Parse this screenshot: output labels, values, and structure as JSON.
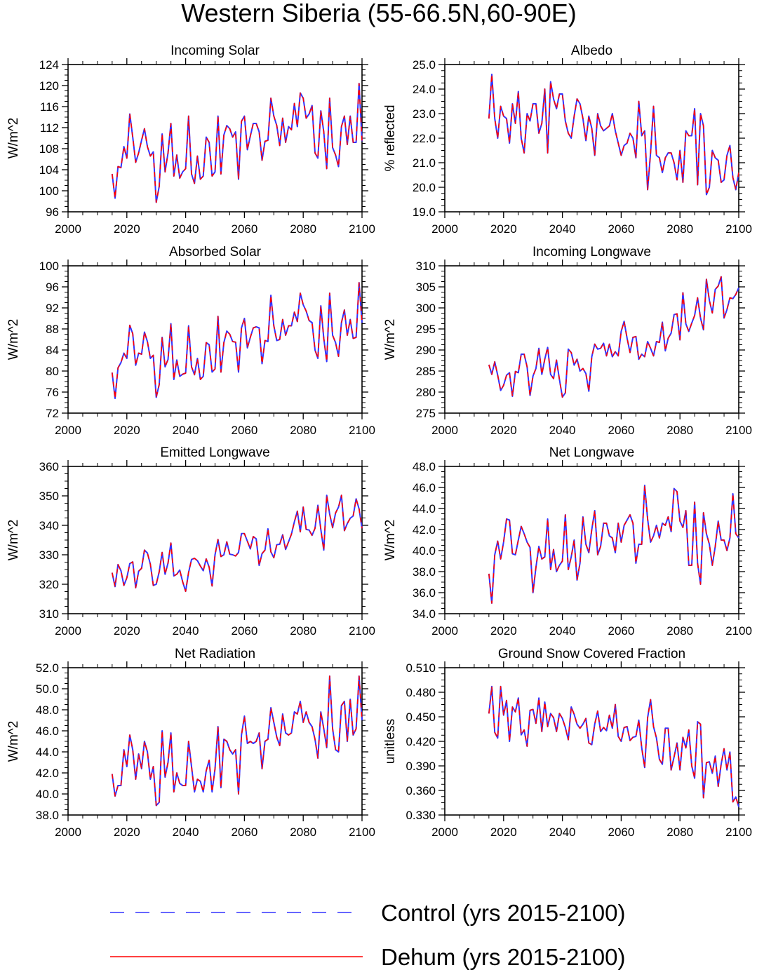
{
  "chart_data": {
    "type": "line",
    "title": "Western Siberia (55-66.5N,60-90E)",
    "x": [
      2015,
      2016,
      2017,
      2018,
      2019,
      2020,
      2021,
      2022,
      2023,
      2024,
      2025,
      2026,
      2027,
      2028,
      2029,
      2030,
      2031,
      2032,
      2033,
      2034,
      2035,
      2036,
      2037,
      2038,
      2039,
      2040,
      2041,
      2042,
      2043,
      2044,
      2045,
      2046,
      2047,
      2048,
      2049,
      2050,
      2051,
      2052,
      2053,
      2054,
      2055,
      2056,
      2057,
      2058,
      2059,
      2060,
      2061,
      2062,
      2063,
      2064,
      2065,
      2066,
      2067,
      2068,
      2069,
      2070,
      2071,
      2072,
      2073,
      2074,
      2075,
      2076,
      2077,
      2078,
      2079,
      2080,
      2081,
      2082,
      2083,
      2084,
      2085,
      2086,
      2087,
      2088,
      2089,
      2090,
      2091,
      2092,
      2093,
      2094,
      2095,
      2096,
      2097,
      2098,
      2099,
      2100
    ],
    "series_names": [
      "Control (yrs 2015-2100)",
      "Dehum (yrs 2015-2100)"
    ],
    "series_colors": [
      "#3333ff",
      "#ff0000"
    ],
    "panels": [
      {
        "title": "Incoming Solar",
        "ylabel": "W/m^2",
        "ylim": [
          96,
          124
        ],
        "yticks": [
          "96",
          "100",
          "104",
          "108",
          "112",
          "116",
          "120",
          "124"
        ],
        "xticks": [
          "2000",
          "2020",
          "2040",
          "2060",
          "2080",
          "2100"
        ],
        "xlim": [
          2000,
          2100
        ],
        "values": [
          103.2,
          98.6,
          104.6,
          104.4,
          108.4,
          106.2,
          114.6,
          110.2,
          105.4,
          107.2,
          109.6,
          111.8,
          108.4,
          106.6,
          107.4,
          97.8,
          100.8,
          110.8,
          103.6,
          107.2,
          112.8,
          102.8,
          106.8,
          102.4,
          103.6,
          104.2,
          114.2,
          103.2,
          101.4,
          106.6,
          102.2,
          102.8,
          110.2,
          109.2,
          102.8,
          103.6,
          114.2,
          103.2,
          110.6,
          112.4,
          111.8,
          110.2,
          111.2,
          102.2,
          113.2,
          114.2,
          107.8,
          110.4,
          112.8,
          112.8,
          111.2,
          105.8,
          109.4,
          109.6,
          117.6,
          114.2,
          112.4,
          108.6,
          113.8,
          109.2,
          112.2,
          111.6,
          116.6,
          112.2,
          118.6,
          117.6,
          113.8,
          114.6,
          116.2,
          107.2,
          106.2,
          115.2,
          111.2,
          104.2,
          117.6,
          108.2,
          106.8,
          104.6,
          112.2,
          114.2,
          108.8,
          114.2,
          109.2,
          109.2,
          120.4,
          109.4
        ]
      },
      {
        "title": "Albedo",
        "ylabel": "% reflected",
        "ylim": [
          19,
          25
        ],
        "yticks": [
          "19.0",
          "20.0",
          "21.0",
          "22.0",
          "23.0",
          "24.0",
          "25.0"
        ],
        "xticks": [
          "2000",
          "2020",
          "2040",
          "2060",
          "2080",
          "2100"
        ],
        "xlim": [
          2000,
          2100
        ],
        "values": [
          22.8,
          24.6,
          22.8,
          22.0,
          23.3,
          22.9,
          22.8,
          21.8,
          23.4,
          22.6,
          23.9,
          22.0,
          21.4,
          23.0,
          22.7,
          23.4,
          23.4,
          22.2,
          22.6,
          24.0,
          21.4,
          24.3,
          23.6,
          23.2,
          23.8,
          23.8,
          22.7,
          22.2,
          22.0,
          22.9,
          23.6,
          23.4,
          22.8,
          21.9,
          22.9,
          22.4,
          21.3,
          23.0,
          22.5,
          22.3,
          22.4,
          22.5,
          23.0,
          22.3,
          21.8,
          21.3,
          21.7,
          21.8,
          22.2,
          22.0,
          21.2,
          23.5,
          22.1,
          22.3,
          19.9,
          21.4,
          23.3,
          21.3,
          21.2,
          20.6,
          21.2,
          21.4,
          21.4,
          21.0,
          20.3,
          21.5,
          20.2,
          22.3,
          22.1,
          22.1,
          23.2,
          20.1,
          23.0,
          22.5,
          19.7,
          20.0,
          21.5,
          21.2,
          21.1,
          20.2,
          20.3,
          21.3,
          21.7,
          20.4,
          19.9,
          20.6
        ]
      },
      {
        "title": "Absorbed Solar",
        "ylabel": "W/m^2",
        "ylim": [
          72,
          100
        ],
        "yticks": [
          "72",
          "76",
          "80",
          "84",
          "88",
          "92",
          "96",
          "100"
        ],
        "xticks": [
          "2000",
          "2020",
          "2040",
          "2060",
          "2080",
          "2100"
        ],
        "xlim": [
          2000,
          2100
        ],
        "values": [
          79.7,
          74.8,
          80.6,
          81.6,
          83.4,
          82.4,
          88.7,
          87.1,
          81.1,
          83.4,
          83.2,
          87.4,
          85.6,
          82.4,
          83.0,
          75.0,
          77.4,
          86.4,
          80.8,
          82.2,
          89.0,
          78.4,
          82.1,
          79.0,
          79.4,
          79.6,
          88.6,
          80.8,
          79.3,
          82.4,
          78.4,
          79.0,
          85.4,
          85.0,
          79.8,
          80.4,
          90.4,
          79.8,
          85.4,
          87.6,
          87.0,
          85.6,
          85.5,
          79.8,
          88.2,
          90.0,
          84.4,
          86.4,
          88.2,
          88.4,
          88.2,
          81.4,
          85.8,
          85.6,
          94.4,
          88.6,
          85.8,
          86.0,
          89.8,
          86.8,
          88.6,
          88.6,
          91.2,
          89.4,
          94.8,
          92.6,
          91.4,
          89.6,
          89.2,
          84.0,
          82.4,
          92.4,
          86.2,
          81.8,
          94.8,
          86.8,
          85.4,
          82.8,
          89.2,
          91.6,
          86.8,
          89.8,
          86.2,
          86.4,
          96.8,
          89.2
        ]
      },
      {
        "title": "Incoming Longwave",
        "ylabel": "W/m^2",
        "ylim": [
          275,
          310
        ],
        "yticks": [
          "275",
          "280",
          "285",
          "290",
          "295",
          "300",
          "305",
          "310"
        ],
        "xticks": [
          "2000",
          "2020",
          "2040",
          "2060",
          "2080",
          "2100"
        ],
        "xlim": [
          2000,
          2100
        ],
        "values": [
          286.5,
          284.2,
          287.2,
          284.0,
          280.4,
          281.6,
          284.0,
          284.6,
          279.0,
          284.9,
          284.6,
          289.0,
          289.0,
          286.0,
          279.2,
          283.8,
          285.6,
          290.4,
          284.2,
          287.8,
          290.6,
          284.2,
          283.2,
          287.6,
          283.0,
          278.8,
          279.8,
          290.2,
          289.4,
          286.4,
          287.8,
          285.0,
          285.6,
          284.4,
          280.2,
          288.4,
          291.4,
          290.2,
          290.4,
          291.6,
          288.6,
          291.4,
          288.4,
          289.6,
          288.6,
          294.4,
          296.8,
          292.8,
          289.4,
          293.0,
          293.2,
          287.8,
          289.0,
          288.4,
          292.0,
          290.4,
          288.6,
          292.0,
          291.8,
          296.6,
          289.8,
          292.8,
          294.0,
          298.4,
          298.6,
          292.4,
          303.6,
          296.2,
          294.4,
          296.4,
          298.2,
          302.4,
          297.6,
          294.8,
          306.8,
          301.8,
          298.8,
          304.4,
          305.2,
          307.4,
          297.6,
          299.6,
          302.4,
          302.2,
          303.2,
          304.8
        ]
      },
      {
        "title": "Emitted Longwave",
        "ylabel": "W/m^2",
        "ylim": [
          310,
          360
        ],
        "yticks": [
          "310",
          "320",
          "330",
          "340",
          "350",
          "360"
        ],
        "xticks": [
          "2000",
          "2020",
          "2040",
          "2060",
          "2080",
          "2100"
        ],
        "xlim": [
          2000,
          2100
        ],
        "values": [
          323.9,
          319.2,
          326.7,
          324.6,
          319.6,
          322.2,
          327.0,
          327.6,
          318.8,
          324.4,
          325.4,
          331.6,
          330.6,
          326.8,
          319.6,
          320.0,
          324.2,
          330.8,
          323.4,
          327.2,
          334.0,
          322.8,
          323.4,
          324.8,
          320.8,
          317.6,
          324.0,
          328.4,
          328.8,
          328.0,
          326.2,
          324.6,
          328.6,
          325.8,
          319.4,
          330.0,
          335.2,
          329.4,
          330.0,
          334.4,
          330.2,
          330.0,
          329.6,
          330.8,
          337.2,
          337.2,
          334.6,
          332.0,
          336.2,
          335.4,
          326.4,
          330.4,
          331.6,
          338.8,
          331.0,
          329.0,
          333.4,
          333.6,
          336.8,
          331.8,
          334.4,
          337.0,
          341.2,
          344.8,
          337.8,
          346.2,
          338.6,
          338.4,
          336.6,
          339.0,
          346.8,
          338.6,
          331.6,
          350.2,
          343.8,
          339.2,
          344.2,
          346.2,
          350.2,
          338.2,
          340.6,
          342.4,
          343.2,
          349.0,
          345.6,
          339.0
        ]
      },
      {
        "title": "Net Longwave",
        "ylabel": "W/m^2",
        "ylim": [
          34,
          48
        ],
        "yticks": [
          "34.0",
          "36.0",
          "38.0",
          "40.0",
          "42.0",
          "44.0",
          "46.0",
          "48.0"
        ],
        "xticks": [
          "2000",
          "2020",
          "2040",
          "2060",
          "2080",
          "2100"
        ],
        "xlim": [
          2000,
          2100
        ],
        "values": [
          37.8,
          35.0,
          39.6,
          40.9,
          39.2,
          40.8,
          43.0,
          42.9,
          39.7,
          39.6,
          41.0,
          42.3,
          41.6,
          40.8,
          40.3,
          36.0,
          38.4,
          40.4,
          39.2,
          39.4,
          43.0,
          38.2,
          40.1,
          38.0,
          38.6,
          39.0,
          43.4,
          38.2,
          39.4,
          41.0,
          37.2,
          38.8,
          43.2,
          40.6,
          39.8,
          42.0,
          43.8,
          39.6,
          40.4,
          42.6,
          42.6,
          41.4,
          41.2,
          39.8,
          42.6,
          40.8,
          42.4,
          42.9,
          43.4,
          42.6,
          38.8,
          40.6,
          40.6,
          46.2,
          43.0,
          40.8,
          41.4,
          42.4,
          41.2,
          42.6,
          42.4,
          43.2,
          41.8,
          45.9,
          45.6,
          42.8,
          42.2,
          43.8,
          38.6,
          38.6,
          44.6,
          38.8,
          36.8,
          43.6,
          41.6,
          40.6,
          38.6,
          40.4,
          42.8,
          41.0,
          41.0,
          40.0,
          41.2,
          45.4,
          41.6,
          41.2
        ]
      },
      {
        "title": "Net Radiation",
        "ylabel": "W/m^2",
        "ylim": [
          38,
          52
        ],
        "yticks": [
          "38.0",
          "40.0",
          "42.0",
          "44.0",
          "46.0",
          "48.0",
          "50.0",
          "52.0"
        ],
        "xticks": [
          "2000",
          "2020",
          "2040",
          "2060",
          "2080",
          "2100"
        ],
        "xlim": [
          2000,
          2100
        ],
        "values": [
          41.9,
          39.8,
          40.8,
          40.8,
          44.2,
          42.6,
          45.6,
          44.2,
          41.4,
          43.8,
          42.4,
          45.0,
          44.0,
          41.4,
          42.6,
          38.9,
          39.2,
          46.0,
          41.6,
          43.0,
          45.8,
          40.2,
          42.0,
          41.0,
          40.8,
          40.8,
          45.0,
          42.6,
          40.2,
          41.4,
          41.2,
          40.2,
          42.2,
          43.2,
          40.2,
          42.4,
          46.4,
          40.6,
          45.2,
          45.0,
          44.2,
          43.8,
          44.2,
          40.0,
          45.6,
          47.4,
          44.8,
          45.0,
          44.8,
          45.0,
          45.8,
          42.4,
          45.0,
          45.2,
          48.2,
          46.8,
          45.4,
          44.6,
          47.6,
          45.8,
          45.6,
          45.8,
          47.8,
          47.6,
          48.8,
          46.8,
          47.8,
          46.8,
          46.4,
          45.2,
          43.4,
          47.8,
          46.2,
          44.4,
          51.2,
          46.2,
          44.2,
          44.0,
          48.4,
          48.8,
          45.0,
          49.0,
          45.6,
          46.2,
          51.2,
          47.0
        ]
      },
      {
        "title": "Ground Snow Covered Fraction",
        "ylabel": "unitless",
        "ylim": [
          0.33,
          0.51
        ],
        "yticks": [
          "0.330",
          "0.360",
          "0.390",
          "0.420",
          "0.450",
          "0.480",
          "0.510"
        ],
        "xticks": [
          "2000",
          "2020",
          "2040",
          "2060",
          "2080",
          "2100"
        ],
        "xlim": [
          2000,
          2100
        ],
        "values": [
          0.454,
          0.487,
          0.431,
          0.424,
          0.487,
          0.452,
          0.47,
          0.42,
          0.462,
          0.456,
          0.473,
          0.428,
          0.434,
          0.414,
          0.458,
          0.459,
          0.442,
          0.473,
          0.432,
          0.468,
          0.438,
          0.454,
          0.449,
          0.432,
          0.454,
          0.448,
          0.437,
          0.422,
          0.462,
          0.453,
          0.441,
          0.436,
          0.441,
          0.448,
          0.418,
          0.416,
          0.441,
          0.457,
          0.432,
          0.437,
          0.433,
          0.452,
          0.436,
          0.465,
          0.426,
          0.42,
          0.437,
          0.438,
          0.421,
          0.425,
          0.426,
          0.446,
          0.412,
          0.388,
          0.449,
          0.471,
          0.438,
          0.424,
          0.398,
          0.392,
          0.436,
          0.436,
          0.385,
          0.401,
          0.418,
          0.385,
          0.425,
          0.412,
          0.434,
          0.39,
          0.375,
          0.444,
          0.441,
          0.351,
          0.394,
          0.395,
          0.381,
          0.402,
          0.365,
          0.392,
          0.411,
          0.385,
          0.407,
          0.346,
          0.352,
          0.34
        ]
      }
    ]
  }
}
